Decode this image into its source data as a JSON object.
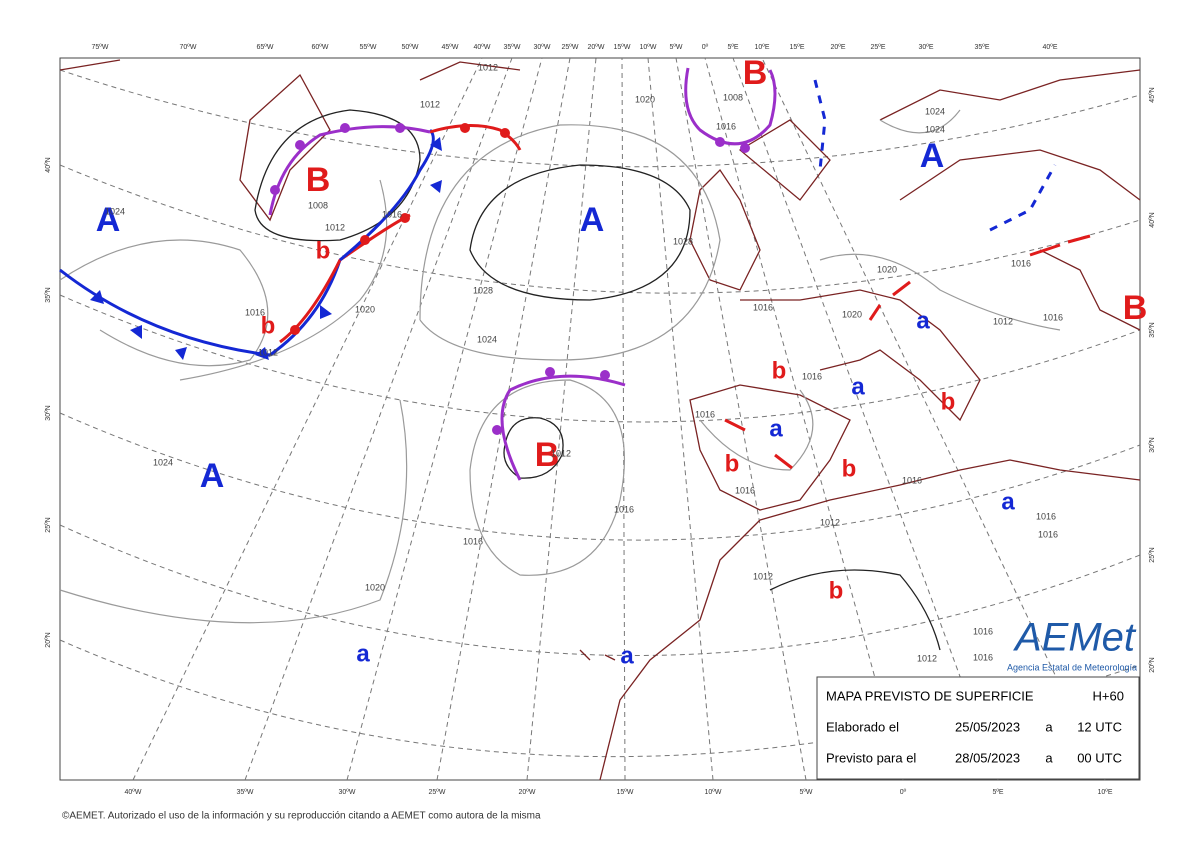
{
  "map": {
    "top_labels": [
      "75ºW",
      "70ºW",
      "65ºW",
      "60ºW",
      "55ºW",
      "50ºW",
      "45ºW",
      "40ºW",
      "35ºW",
      "30ºW",
      "25ºW",
      "20ºW",
      "15ºW",
      "10ºW",
      "5ºW",
      "0º",
      "5ºE",
      "10ºE",
      "15ºE",
      "20ºE",
      "25ºE",
      "30ºE",
      "35ºE",
      "40ºE"
    ],
    "bottom_labels": [
      "40ºW",
      "35ºW",
      "30ºW",
      "25ºW",
      "20ºW",
      "15ºW",
      "10ºW",
      "5ºW",
      "0º",
      "5ºE",
      "10ºE"
    ],
    "left_labels": [
      "40ºN",
      "35ºN",
      "30ºN",
      "25ºN",
      "20ºN"
    ],
    "right_labels": [
      "45ºN",
      "40ºN",
      "35ºN",
      "30ºN",
      "25ºN",
      "20ºN"
    ],
    "pressure_centers": [
      "B",
      "A",
      "A",
      "A",
      "B",
      "B",
      "A",
      "b",
      "b",
      "a",
      "b",
      "a",
      "b",
      "a",
      "b",
      "b",
      "a",
      "b",
      "a",
      "a",
      "B"
    ],
    "isobar_labels": [
      "1012",
      "1012",
      "1020",
      "1008",
      "1016",
      "1028",
      "1028",
      "1012",
      "1008",
      "1016",
      "1016",
      "1012",
      "1020",
      "1024",
      "1024",
      "1024",
      "1020",
      "1016",
      "1016",
      "1012",
      "1020",
      "1020",
      "1016",
      "1012",
      "1016",
      "1016",
      "1016",
      "1016",
      "1016",
      "1012",
      "1012",
      "1016",
      "1016",
      "1016",
      "1012",
      "1016",
      "1016",
      "1024",
      "1024"
    ]
  },
  "info_box": {
    "title": "MAPA PREVISTO DE SUPERFICIE",
    "lead": "H+60",
    "row1": [
      "Elaborado el",
      "25/05/2023",
      "a",
      "12 UTC"
    ],
    "row2": [
      "Previsto para el",
      "28/05/2023",
      "a",
      "00 UTC"
    ]
  },
  "logo": {
    "name": "AEMet",
    "subtitle": "Agencia Estatal de Meteorología"
  },
  "footer": "©AEMET. Autorizado el uso de la información y su reproducción citando a AEMET como autora de la misma"
}
